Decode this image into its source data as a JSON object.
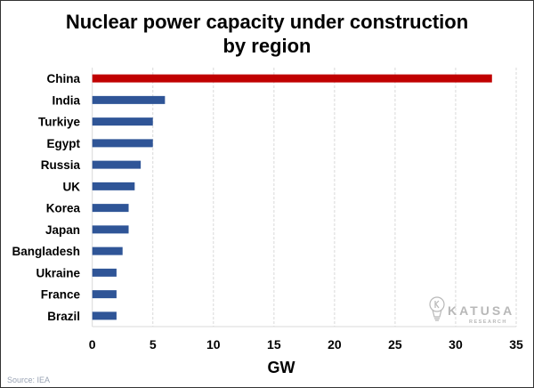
{
  "chart_data": {
    "type": "bar",
    "orientation": "horizontal",
    "title": [
      "Nuclear power capacity under construction",
      "by region"
    ],
    "xlabel": "GW",
    "ylabel": "",
    "categories": [
      "China",
      "India",
      "Turkiye",
      "Egypt",
      "Russia",
      "UK",
      "Korea",
      "Japan",
      "Bangladesh",
      "Ukraine",
      "France",
      "Brazil"
    ],
    "values": [
      33,
      6,
      5,
      5,
      4,
      3.5,
      3,
      3,
      2.5,
      2,
      2,
      2
    ],
    "highlight_color": "#c00000",
    "bar_color": "#2f5597",
    "highlight_index": 0,
    "xlim": [
      0,
      35
    ],
    "xticks": [
      0,
      5,
      10,
      15,
      20,
      25,
      30,
      35
    ],
    "grid": "vertical dashed"
  },
  "source": "Source: IEA",
  "logo": {
    "name": "KATUSA",
    "sub": "RESEARCH"
  }
}
